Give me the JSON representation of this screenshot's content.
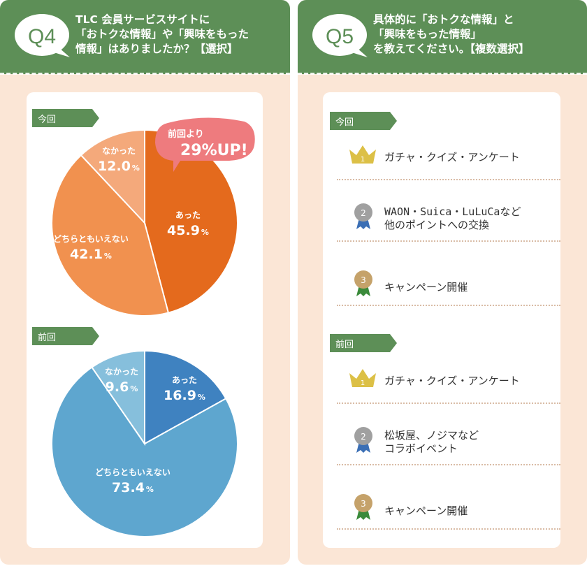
{
  "q4": {
    "qnum": "Q4",
    "question": "TLC 会員サービスサイトに\n「おトクな情報」や「興味をもった\n情報」はありましたか？【選択】",
    "current_tag": "今回",
    "previous_tag": "前回",
    "callout": {
      "line1": "前回より",
      "line2": "29%UP!"
    }
  },
  "q5": {
    "qnum": "Q5",
    "question": "具体的に「おトクな情報」と\n「興味をもった情報」\nを教えてください。【複数選択】",
    "current_tag": "今回",
    "previous_tag": "前回",
    "current": [
      {
        "rank": "1",
        "label": "ガチャ・クイズ・アンケート"
      },
      {
        "rank": "2",
        "label": "WAON・Suica・LuLuCaなど\n他のポイントへの交換"
      },
      {
        "rank": "3",
        "label": "キャンペーン開催"
      }
    ],
    "previous": [
      {
        "rank": "1",
        "label": "ガチャ・クイズ・アンケート"
      },
      {
        "rank": "2",
        "label": "松坂屋、ノジマなど\nコラボイベント"
      },
      {
        "rank": "3",
        "label": "キャンペーン開催"
      }
    ]
  },
  "colors": {
    "header_green": "#5d8f57",
    "panel_bg": "#fbe6d6",
    "current_slices": [
      "#e46a1d",
      "#f1914f",
      "#f4a97b"
    ],
    "previous_slices": [
      "#3f82c0",
      "#5ea6cf",
      "#86bfdc"
    ],
    "callout": "#ee7b7e",
    "gold": "#dcc046",
    "silver": "#a0a0a0",
    "bronze": "#c5a26a"
  },
  "chart_data": [
    {
      "type": "pie",
      "title": "今回",
      "categories": [
        "あった",
        "どちらともいえない",
        "なかった"
      ],
      "values": [
        45.9,
        42.1,
        12.0
      ],
      "value_labels": [
        "45.9",
        "42.1",
        "12.0"
      ],
      "unit": "%"
    },
    {
      "type": "pie",
      "title": "前回",
      "categories": [
        "あった",
        "どちらともいえない",
        "なかった"
      ],
      "values": [
        16.9,
        73.4,
        9.6
      ],
      "value_labels": [
        "16.9",
        "73.4",
        "9.6"
      ],
      "unit": "%"
    }
  ]
}
